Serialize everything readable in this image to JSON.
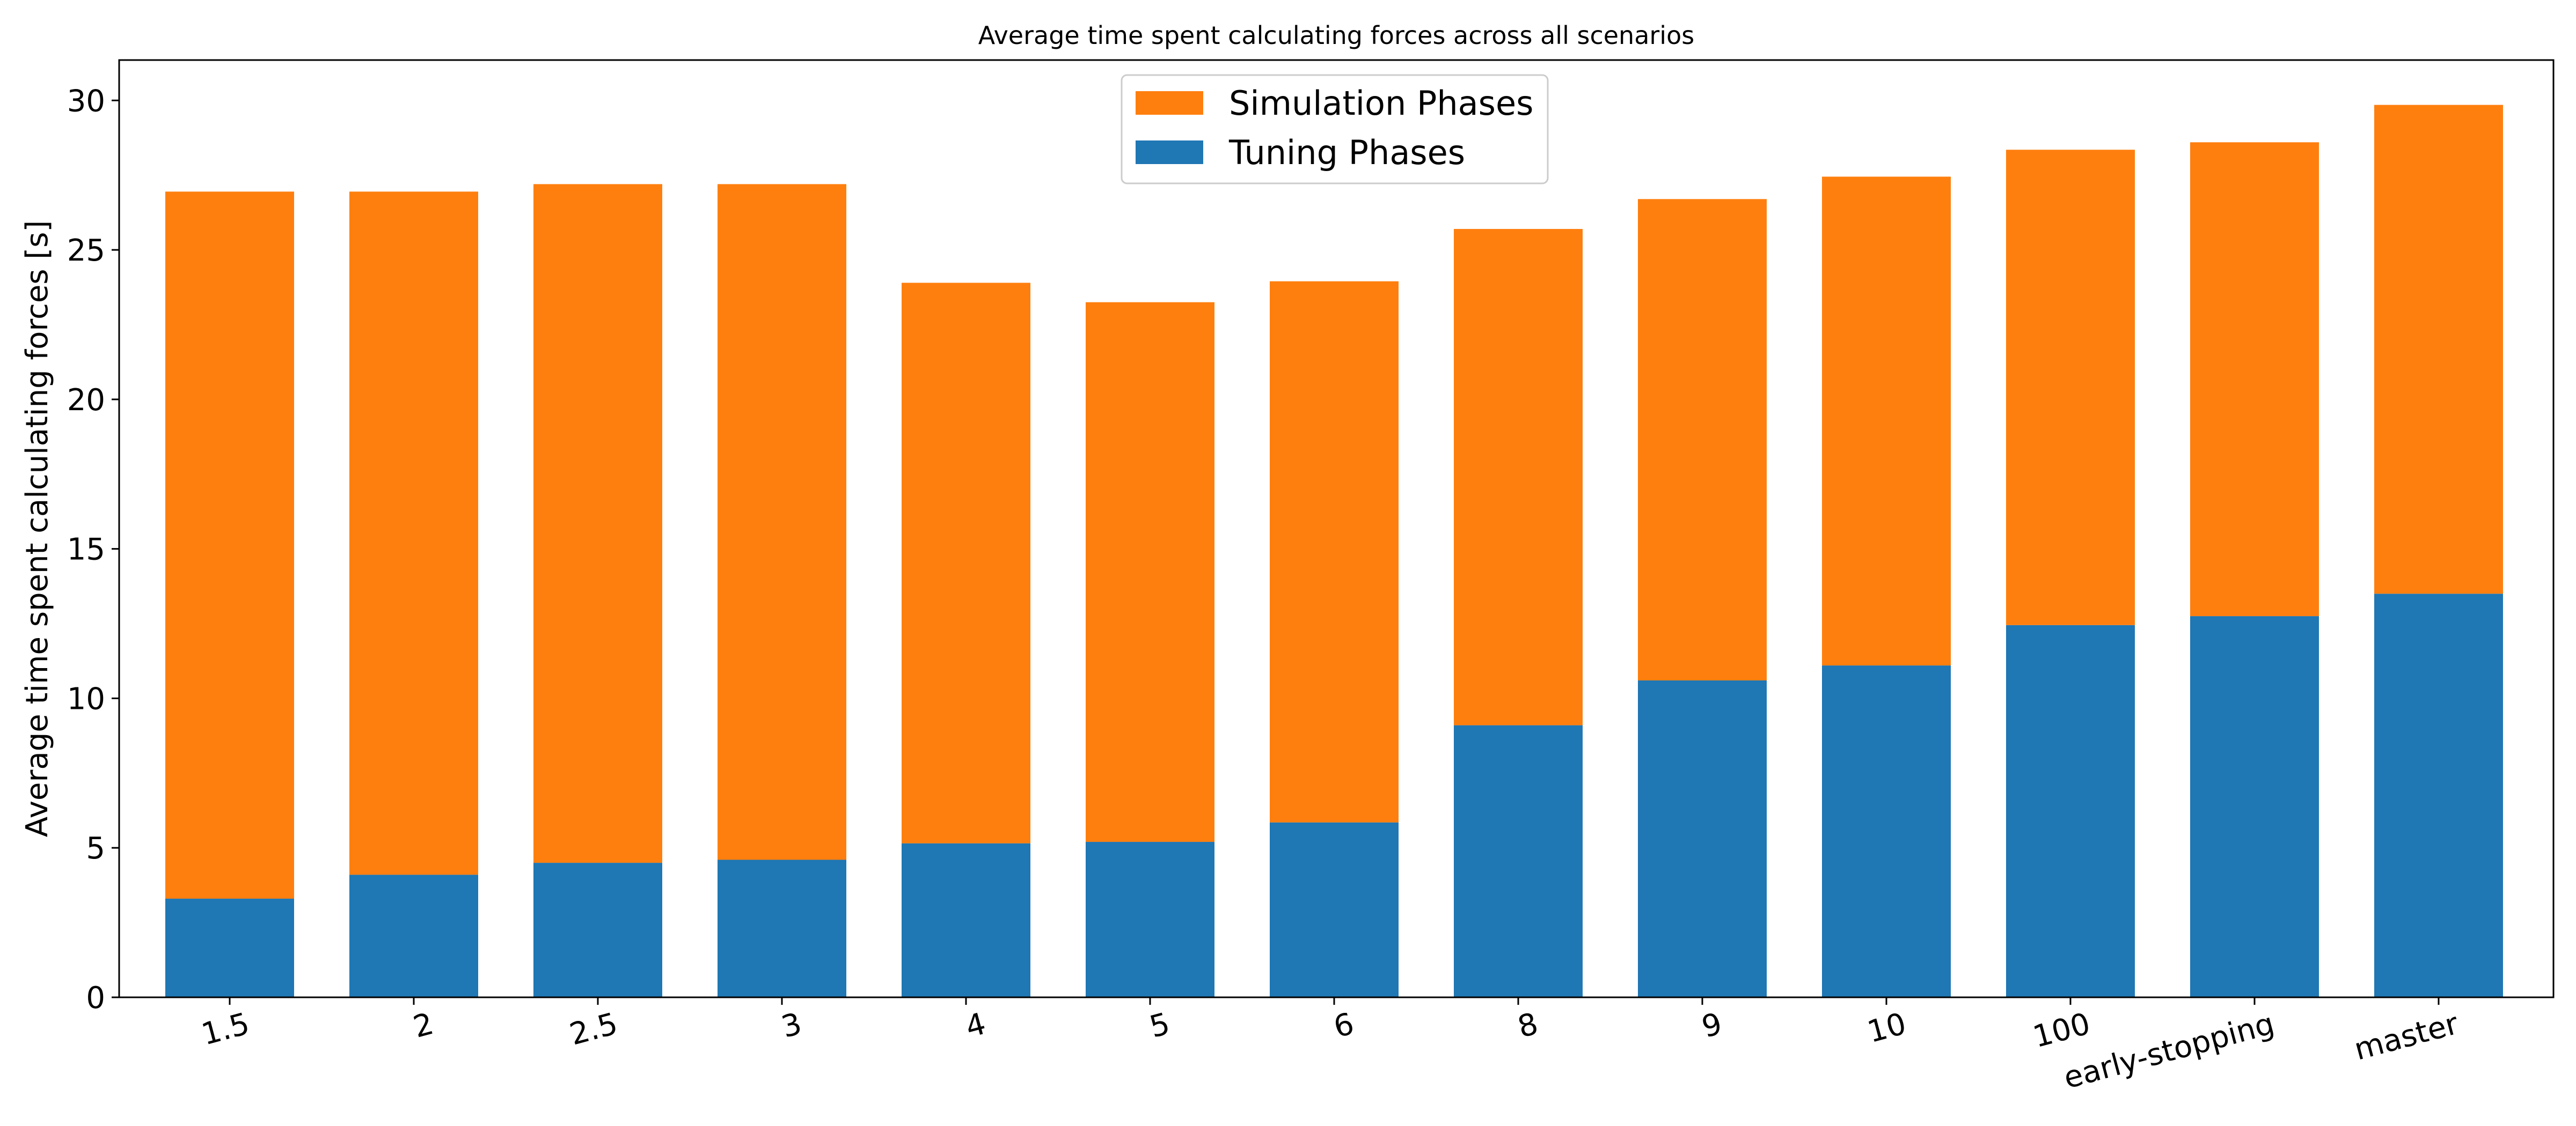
{
  "chart_data": {
    "type": "bar",
    "stacked": true,
    "title": "Average time spent calculating forces across all scenarios",
    "xlabel": "",
    "ylabel": "Average time spent calculating forces [s]",
    "ylim": [
      0,
      31.35
    ],
    "yticks": [
      0,
      5,
      10,
      15,
      20,
      25,
      30
    ],
    "grid": false,
    "legend_position": "top-center",
    "categories": [
      "1.5",
      "2",
      "2.5",
      "3",
      "4",
      "5",
      "6",
      "8",
      "9",
      "10",
      "100",
      "early-stopping",
      "master"
    ],
    "series": [
      {
        "name": "Tuning Phases",
        "color": "#1f77b4",
        "values": [
          3.3,
          4.1,
          4.5,
          4.6,
          5.15,
          5.2,
          5.85,
          9.1,
          10.6,
          11.1,
          12.45,
          12.75,
          13.5
        ]
      },
      {
        "name": "Simulation Phases",
        "color": "#ff7f0e",
        "values": [
          23.65,
          22.85,
          22.7,
          22.6,
          18.75,
          18.05,
          18.1,
          16.6,
          16.1,
          16.35,
          15.9,
          15.85,
          16.35
        ]
      }
    ]
  }
}
